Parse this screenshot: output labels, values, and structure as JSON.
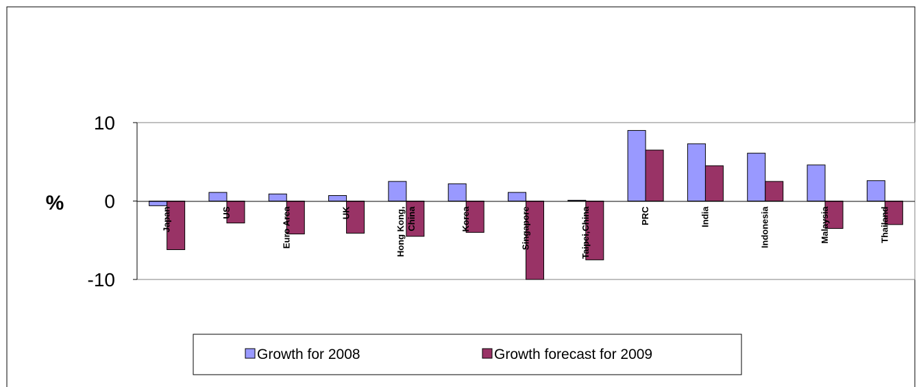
{
  "chart_data": {
    "type": "bar",
    "categories": [
      "Japan",
      "US",
      "Euro Area",
      "UK",
      "Hong Kong, China",
      "Korea",
      "Singapore",
      "Taipei,China",
      "PRC",
      "India",
      "Indonesia",
      "Malaysia",
      "Thailand"
    ],
    "category_lines": [
      [
        "Japan"
      ],
      [
        "US"
      ],
      [
        "Euro Area"
      ],
      [
        "UK"
      ],
      [
        "Hong Kong,",
        "China"
      ],
      [
        "Korea"
      ],
      [
        "Singapore"
      ],
      [
        "Taipei,China"
      ],
      [
        "PRC"
      ],
      [
        "India"
      ],
      [
        "Indonesia"
      ],
      [
        "Malaysia"
      ],
      [
        "Thailand"
      ]
    ],
    "series": [
      {
        "name": "Growth for 2008",
        "color": "#9999ff",
        "values": [
          -0.6,
          1.1,
          0.9,
          0.7,
          2.5,
          2.2,
          1.1,
          0.1,
          9.0,
          7.3,
          6.1,
          4.6,
          2.6
        ]
      },
      {
        "name": "Growth forecast for 2009",
        "color": "#993366",
        "values": [
          -6.2,
          -2.8,
          -4.2,
          -4.1,
          -4.5,
          -4.0,
          -10.0,
          -7.5,
          6.5,
          4.5,
          2.5,
          -3.5,
          -3.0
        ]
      }
    ],
    "ylabel": "%",
    "ylim": [
      -10,
      10
    ],
    "yticks": [
      "-10",
      "0",
      "10"
    ],
    "legend_position": "bottom",
    "grid": false
  }
}
